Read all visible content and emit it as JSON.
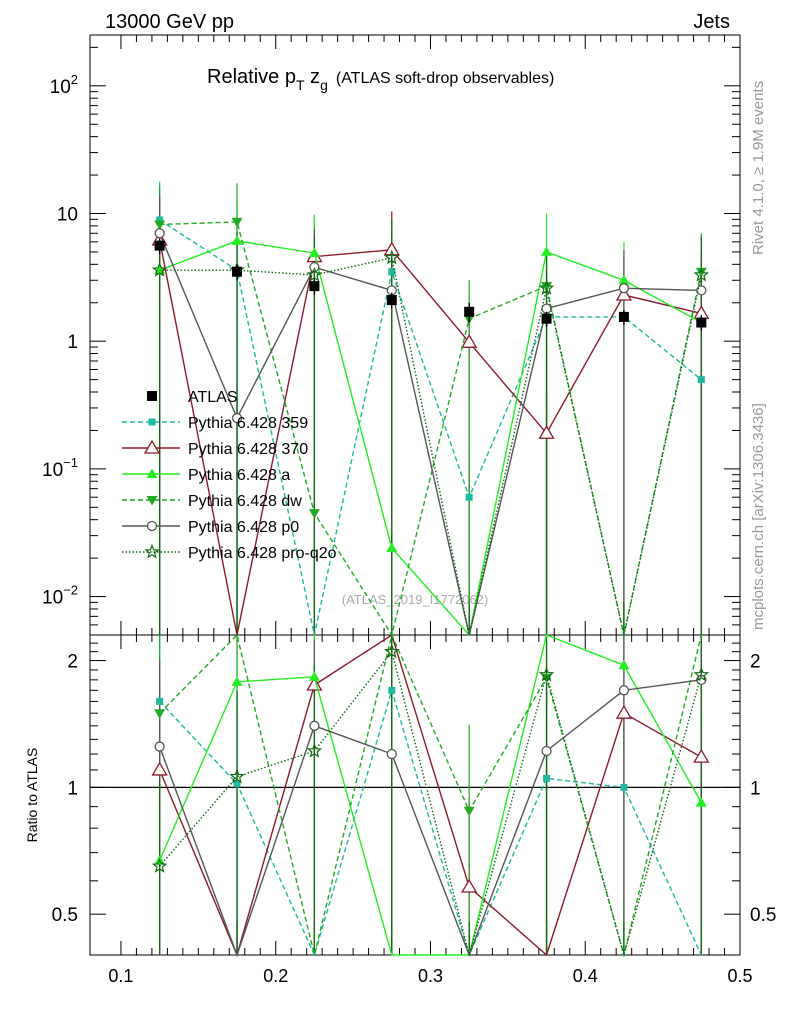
{
  "header": {
    "left": "13000 GeV pp",
    "right": "Jets"
  },
  "side_labels": {
    "rivet": "Rivet 4.1.0, ≥ 1.9M events",
    "mcplots": "mcplots.cern.ch [arXiv:1306.3436]"
  },
  "chart_data": {
    "type": "line",
    "title": {
      "main": "Relative p",
      "sub_T": "T",
      "mid": " z",
      "sub_g": "g",
      "tail": "(ATLAS soft-drop observables)"
    },
    "watermark": "(ATLAS_2019_I1772062)",
    "xlabel": "",
    "ylabel_ratio": "Ratio to ATLAS",
    "xlim": [
      0.08,
      0.5
    ],
    "ylim_main": [
      0.005,
      250
    ],
    "ylim_ratio": [
      0.4,
      2.3
    ],
    "ylog": true,
    "x_ticks": [
      "0.1",
      "0.2",
      "0.3",
      "0.4",
      "0.5"
    ],
    "y_ticks_main": [
      {
        "base": "10",
        "exp": "2",
        "value": 100
      },
      {
        "base": "10",
        "exp": "",
        "value": 10
      },
      {
        "base": "1",
        "exp": "",
        "value": 1
      },
      {
        "base": "10",
        "exp": "−1",
        "value": 0.1
      },
      {
        "base": "10",
        "exp": "−2",
        "value": 0.01
      }
    ],
    "y_ticks_ratio": [
      {
        "label": "2",
        "value": 2
      },
      {
        "label": "1",
        "value": 1
      },
      {
        "label": "0.5",
        "value": 0.5
      }
    ],
    "x": [
      0.125,
      0.175,
      0.225,
      0.275,
      0.325,
      0.375,
      0.425,
      0.475
    ],
    "reference": {
      "name": "ATLAS",
      "values": [
        5.6,
        3.5,
        2.7,
        2.1,
        1.7,
        1.5,
        1.55,
        1.4
      ],
      "errors": [
        0.8,
        0.5,
        0.4,
        0.3,
        0.3,
        0.2,
        0.2,
        0.2
      ]
    },
    "series": [
      {
        "name": "Pythia 6.428 359",
        "color": "#1fb8a0",
        "dash": "5,3",
        "marker": "square",
        "values": [
          8.9,
          3.6,
          0.0045,
          3.5,
          0.06,
          1.55,
          1.55,
          0.5
        ],
        "ratio": [
          1.6,
          1.02,
          0.3,
          1.7,
          0.3,
          1.05,
          1.0,
          0.35
        ]
      },
      {
        "name": "Pythia 6.428 370",
        "color": "#8b1a2b",
        "dash": "",
        "marker": "triangle-open",
        "values": [
          6.2,
          0.0045,
          4.6,
          5.2,
          0.98,
          0.19,
          2.3,
          1.65
        ],
        "ratio": [
          1.1,
          0.3,
          1.75,
          2.45,
          0.58,
          0.3,
          1.5,
          1.18
        ]
      },
      {
        "name": "Pythia 6.428 a",
        "color": "#22ee22",
        "dash": "",
        "marker": "triangle",
        "values": [
          3.6,
          6.1,
          4.9,
          0.024,
          0.0045,
          5.0,
          3.0,
          1.4
        ],
        "ratio": [
          0.67,
          1.78,
          1.83,
          0.3,
          0.3,
          3.0,
          1.95,
          0.92
        ]
      },
      {
        "name": "Pythia 6.428 dw",
        "color": "#22aa22",
        "dash": "5,3",
        "marker": "triangle-down",
        "values": [
          8.2,
          8.6,
          0.045,
          0.0045,
          1.5,
          2.7,
          0.0045,
          3.5
        ],
        "ratio": [
          1.5,
          2.45,
          0.3,
          2.4,
          0.88,
          1.82,
          0.3,
          2.4
        ]
      },
      {
        "name": "Pythia 6.428 p0",
        "color": "#555555",
        "dash": "",
        "marker": "circle-open",
        "values": [
          7.0,
          0.25,
          3.8,
          2.5,
          0.0045,
          1.8,
          2.6,
          2.5
        ],
        "ratio": [
          1.25,
          0.3,
          1.4,
          1.2,
          0.3,
          1.22,
          1.7,
          1.8
        ]
      },
      {
        "name": "Pythia 6.428 pro-q2o",
        "color": "#116611",
        "dash": "1.5,2",
        "marker": "star",
        "values": [
          3.6,
          3.6,
          3.3,
          4.5,
          0.0045,
          2.6,
          0.0045,
          3.3
        ],
        "ratio": [
          0.65,
          1.06,
          1.22,
          2.1,
          0.3,
          1.85,
          0.3,
          1.85
        ]
      }
    ]
  }
}
